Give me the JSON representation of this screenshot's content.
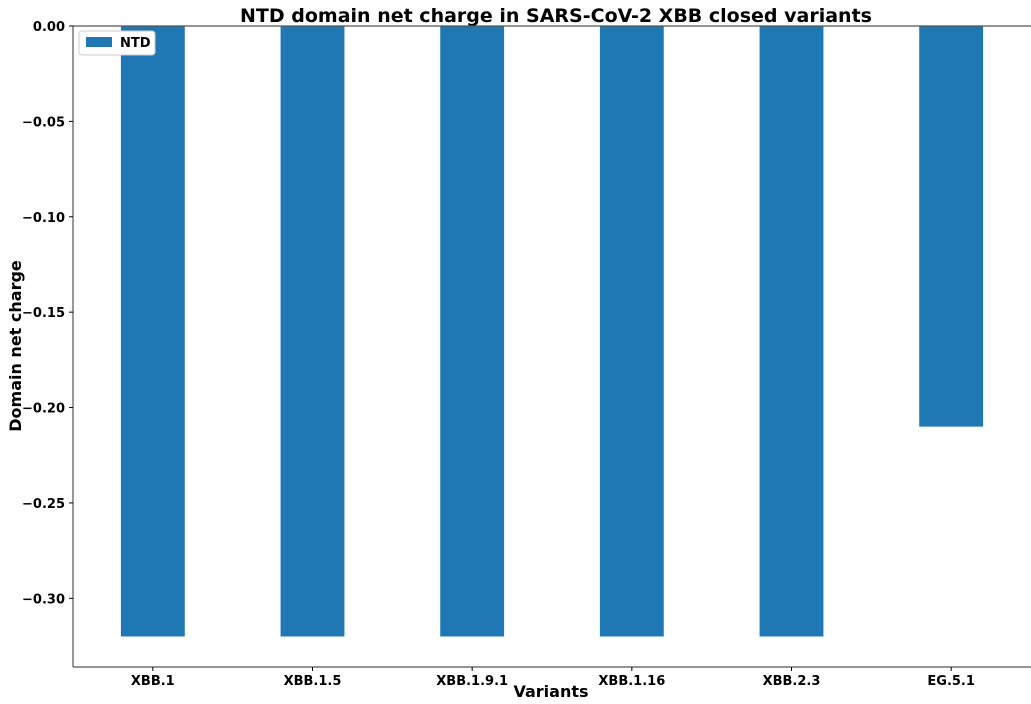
{
  "chart_data": {
    "type": "bar",
    "title": "NTD domain net charge in SARS-CoV-2 XBB closed variants",
    "xlabel": "Variants",
    "ylabel": "Domain net charge",
    "categories": [
      "XBB.1",
      "XBB.1.5",
      "XBB.1.9.1",
      "XBB.1.16",
      "XBB.2.3",
      "EG.5.1"
    ],
    "series": [
      {
        "name": "NTD",
        "values": [
          -0.32,
          -0.32,
          -0.32,
          -0.32,
          -0.32,
          -0.21
        ],
        "color": "#1f77b4"
      }
    ],
    "ylim": [
      -0.336,
      0.0
    ],
    "yticks": [
      0.0,
      -0.05,
      -0.1,
      -0.15,
      -0.2,
      -0.25,
      -0.3
    ],
    "ytick_labels": [
      "0.00",
      "−0.05",
      "−0.10",
      "−0.15",
      "−0.20",
      "−0.25",
      "−0.30"
    ],
    "grid": false,
    "legend_position": "top-left"
  }
}
